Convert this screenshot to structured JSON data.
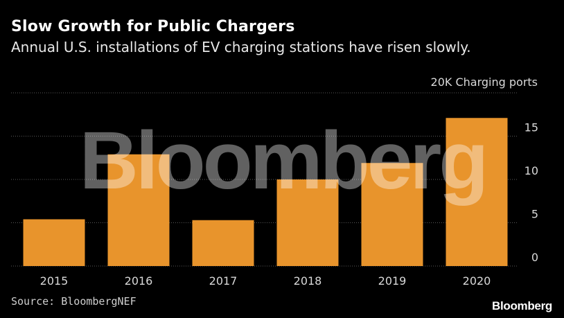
{
  "header": {
    "title": "Slow Growth for Public Chargers",
    "subtitle": "Annual U.S. installations of EV charging stations have risen slowly."
  },
  "footer": {
    "source": "Source: BloombergNEF",
    "brand": "Bloomberg"
  },
  "watermark": "Bloomberg",
  "colors": {
    "background": "#000000",
    "bar": "#e8942c",
    "grid": "#5a5a5a",
    "text": "#ffffff",
    "tick_text": "#d9d9d9"
  },
  "chart_data": {
    "type": "bar",
    "title": "Slow Growth for Public Chargers",
    "subtitle": "Annual U.S. installations of EV charging stations have risen slowly.",
    "categories": [
      "2015",
      "2016",
      "2017",
      "2018",
      "2019",
      "2020"
    ],
    "values": [
      5.4,
      12.9,
      5.3,
      10.0,
      11.9,
      17.1
    ],
    "ylabel": "20K Charging ports",
    "yticks": [
      0,
      5,
      10,
      15
    ],
    "ylim": [
      0,
      20
    ],
    "y_axis_position": "right",
    "grid": true,
    "legend": "none"
  }
}
